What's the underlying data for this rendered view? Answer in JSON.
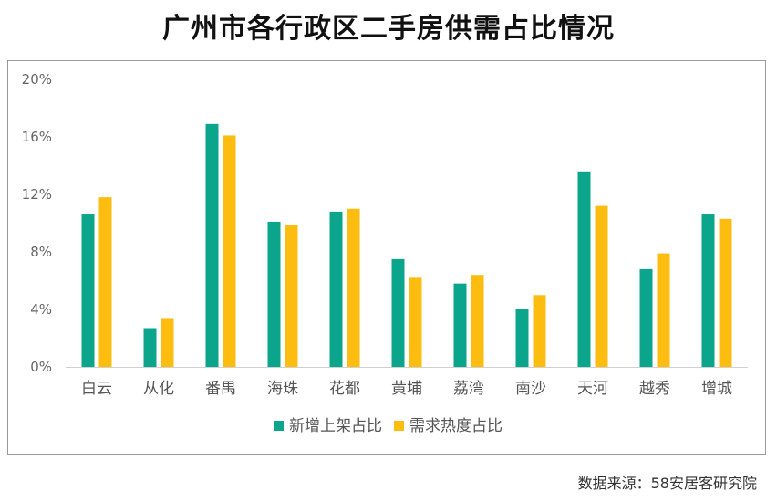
{
  "chart_data": {
    "type": "bar",
    "title": "广州市各行政区二手房供需占比情况",
    "source": "数据来源：58安居客研究院",
    "categories": [
      "白云",
      "从化",
      "番禺",
      "海珠",
      "花都",
      "黄埔",
      "荔湾",
      "南沙",
      "天河",
      "越秀",
      "增城"
    ],
    "series": [
      {
        "name": "新增上架占比",
        "color": "#0aa58a",
        "values": [
          10.6,
          2.7,
          16.9,
          10.1,
          10.8,
          7.5,
          5.8,
          4.0,
          13.6,
          6.8,
          10.6
        ]
      },
      {
        "name": "需求热度占比",
        "color": "#fdbd10",
        "values": [
          11.8,
          3.4,
          16.1,
          9.9,
          11.0,
          6.2,
          6.4,
          5.0,
          11.2,
          7.9,
          10.3
        ]
      }
    ],
    "yticks": [
      "0%",
      "4%",
      "8%",
      "12%",
      "16%",
      "20%"
    ],
    "ylim": [
      0,
      20
    ],
    "legend_position": "bottom",
    "grid": false
  }
}
